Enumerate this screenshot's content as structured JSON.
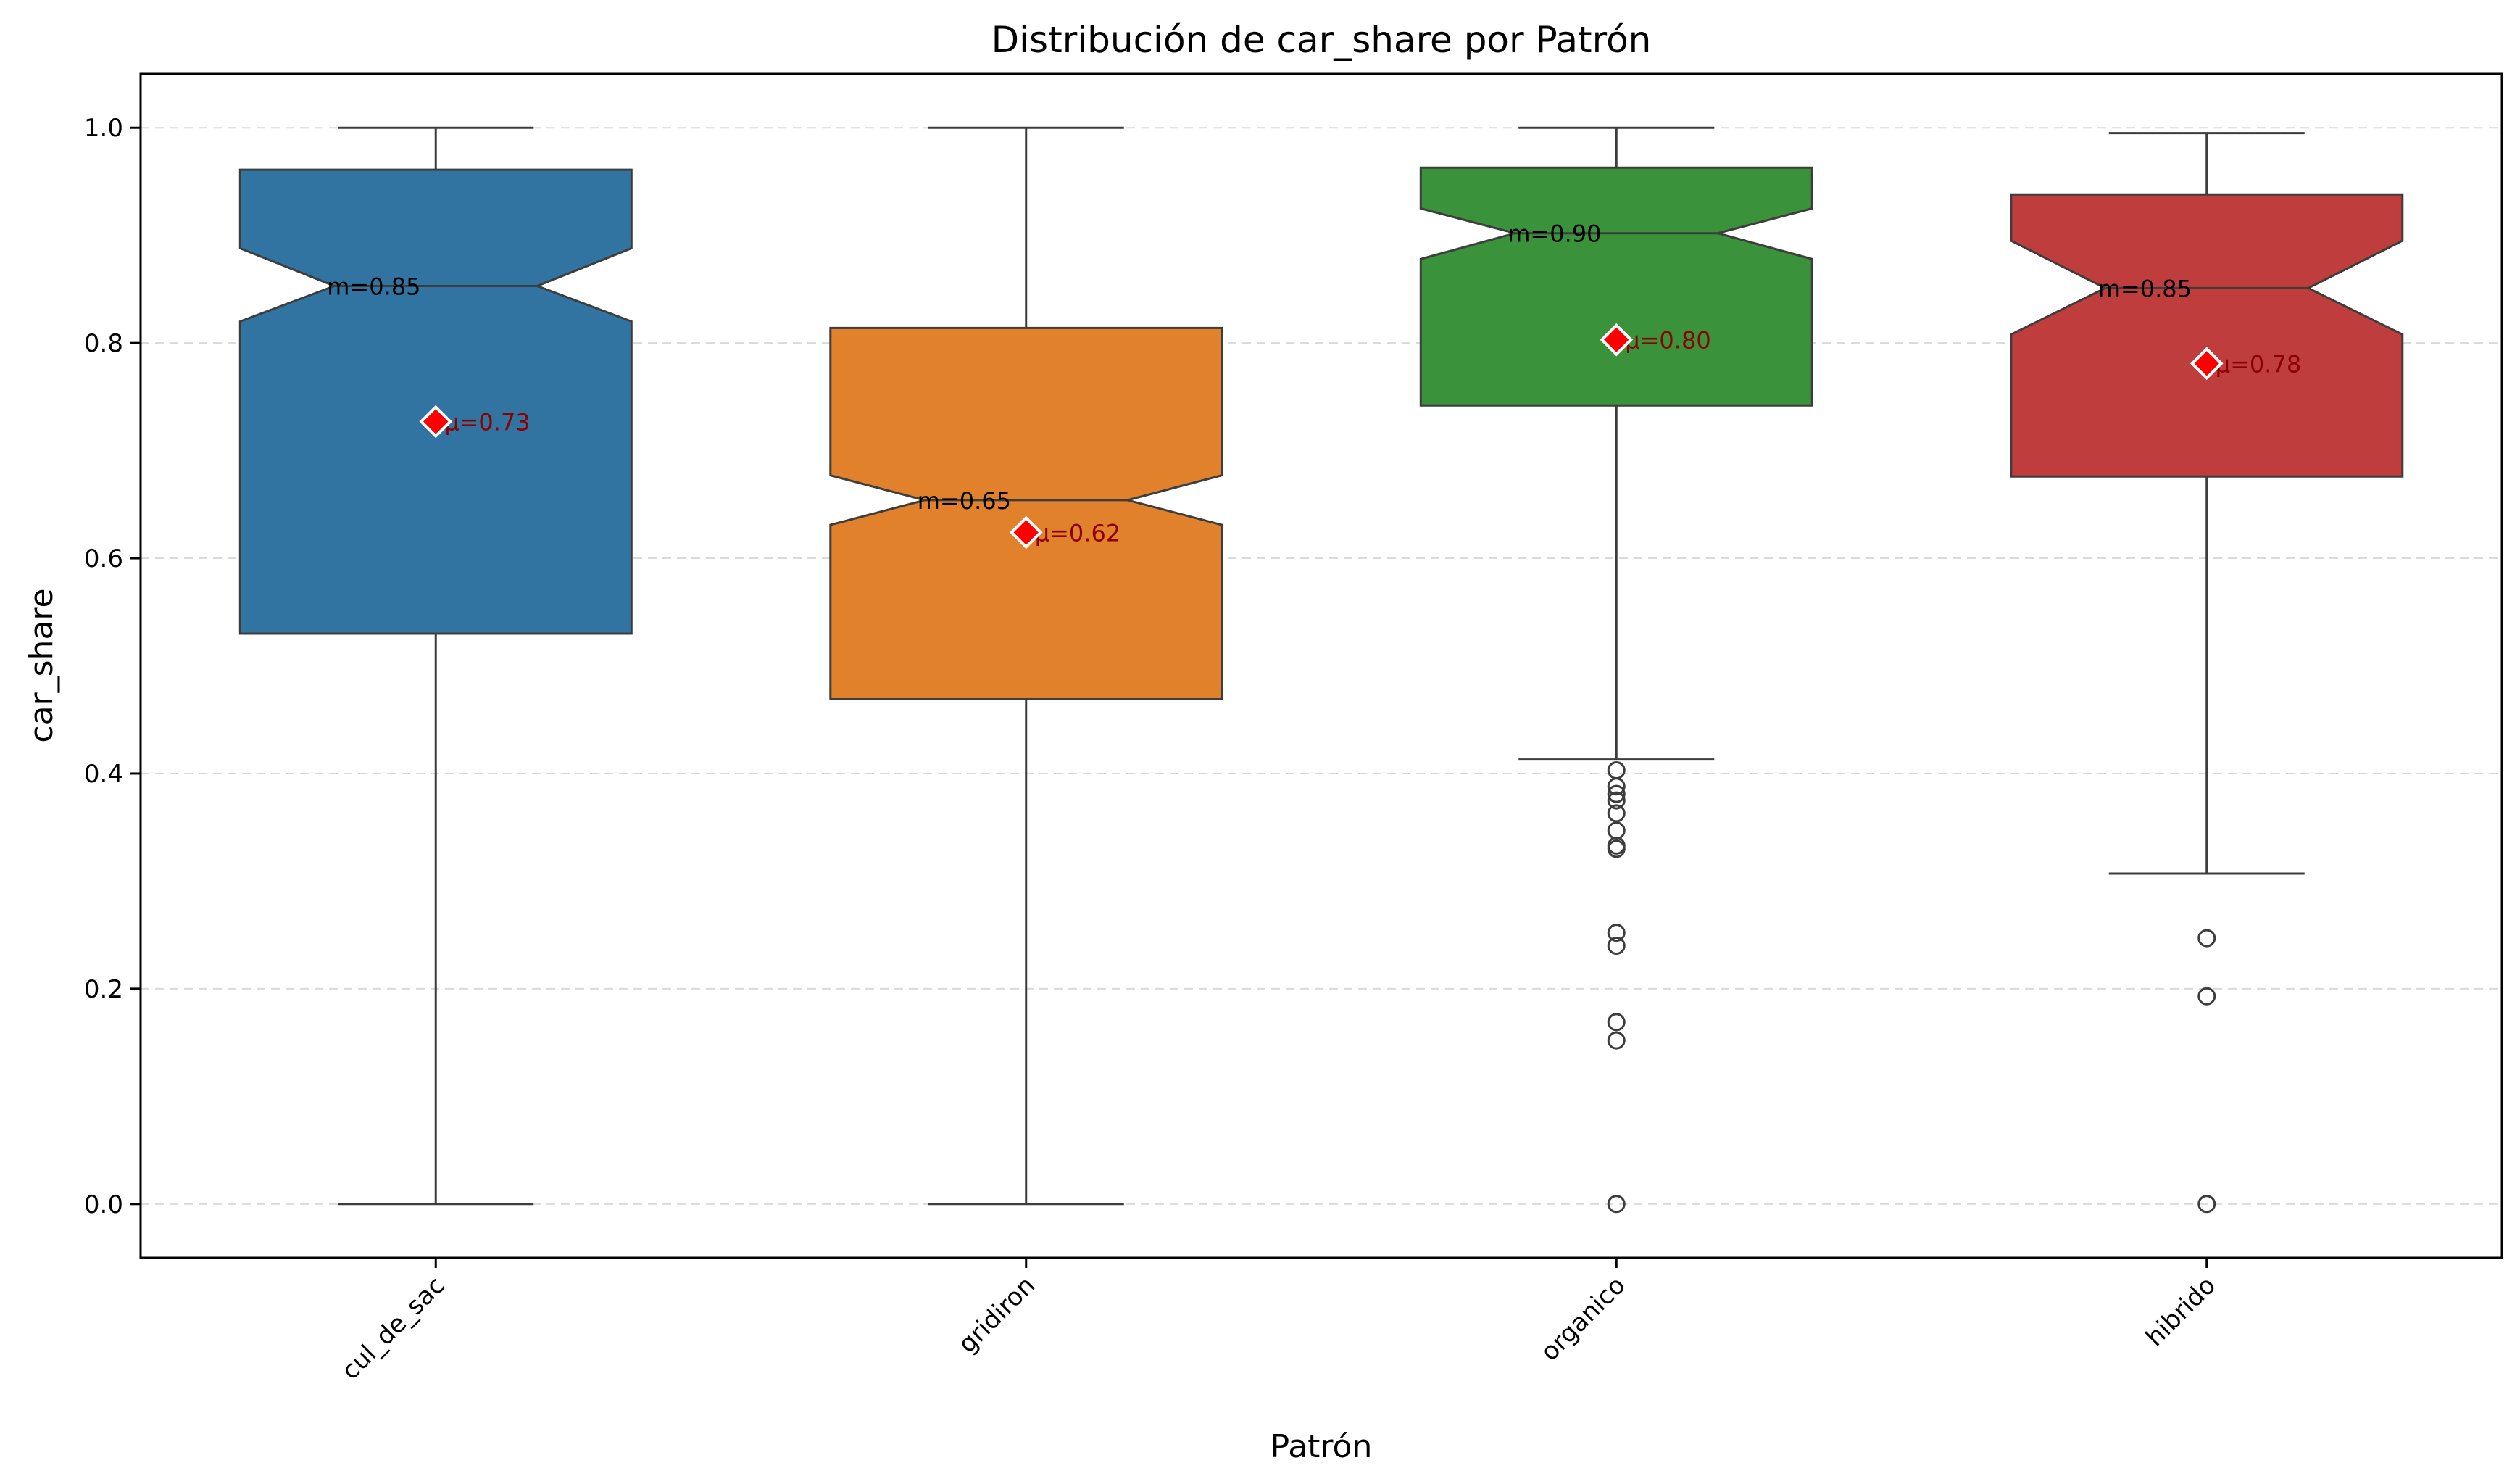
{
  "chart_data": {
    "type": "box",
    "title": "Distribución de car_share por Patrón",
    "xlabel": "Patrón",
    "ylabel": "car_share",
    "ylim": [
      -0.05,
      1.05
    ],
    "yticks": [
      0.0,
      0.2,
      0.4,
      0.6,
      0.8,
      1.0
    ],
    "ytick_labels": [
      "0.0",
      "0.2",
      "0.4",
      "0.6",
      "0.8",
      "1.0"
    ],
    "grid": "y-dashed",
    "notched": true,
    "categories": [
      "cul_de_sac",
      "gridiron",
      "organico",
      "hibrido"
    ],
    "colors": [
      "#3274a1",
      "#e1812c",
      "#3a923a",
      "#c03d3e"
    ],
    "mean_marker_color": "#ff0000",
    "boxes": [
      {
        "category": "cul_de_sac",
        "whisker_low": 0.0,
        "q1": 0.53,
        "median": 0.853,
        "q3": 0.961,
        "whisker_high": 1.0,
        "notch_low": 0.82,
        "notch_high": 0.888,
        "mean": 0.727,
        "median_label": "m=0.85",
        "mean_label": "μ=0.73",
        "outliers": []
      },
      {
        "category": "gridiron",
        "whisker_low": 0.0,
        "q1": 0.469,
        "median": 0.654,
        "q3": 0.814,
        "whisker_high": 1.0,
        "notch_low": 0.631,
        "notch_high": 0.677,
        "mean": 0.624,
        "median_label": "m=0.65",
        "mean_label": "μ=0.62",
        "outliers": []
      },
      {
        "category": "organico",
        "whisker_low": 0.413,
        "q1": 0.742,
        "median": 0.902,
        "q3": 0.963,
        "whisker_high": 1.0,
        "notch_low": 0.878,
        "notch_high": 0.925,
        "mean": 0.803,
        "median_label": "m=0.90",
        "mean_label": "μ=0.80",
        "outliers": [
          0.403,
          0.388,
          0.381,
          0.375,
          0.363,
          0.347,
          0.333,
          0.33,
          0.252,
          0.24,
          0.169,
          0.152,
          0.0
        ]
      },
      {
        "category": "hibrido",
        "whisker_low": 0.307,
        "q1": 0.676,
        "median": 0.851,
        "q3": 0.938,
        "whisker_high": 0.995,
        "notch_low": 0.808,
        "notch_high": 0.895,
        "mean": 0.781,
        "median_label": "m=0.85",
        "mean_label": "μ=0.78",
        "outliers": [
          0.247,
          0.193,
          0.0
        ]
      }
    ]
  }
}
